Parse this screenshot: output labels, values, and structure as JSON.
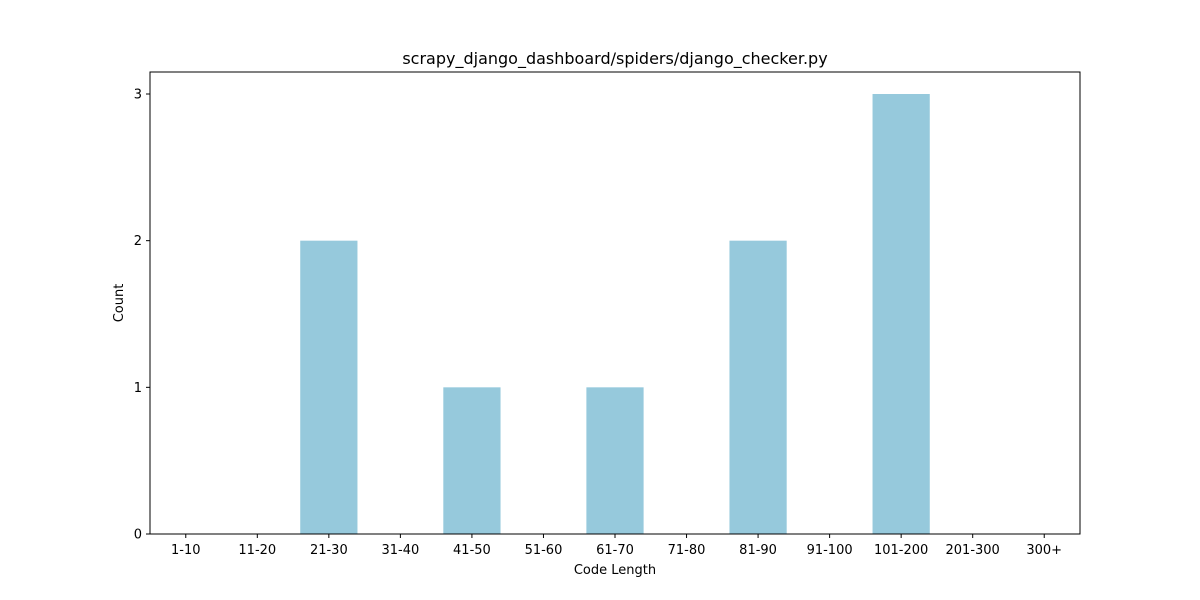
{
  "chart_data": {
    "type": "bar",
    "title": "scrapy_django_dashboard/spiders/django_checker.py",
    "xlabel": "Code Length",
    "ylabel": "Count",
    "categories": [
      "1-10",
      "11-20",
      "21-30",
      "31-40",
      "41-50",
      "51-60",
      "61-70",
      "71-80",
      "81-90",
      "91-100",
      "101-200",
      "201-300",
      "300+"
    ],
    "values": [
      0,
      0,
      2,
      0,
      1,
      0,
      1,
      0,
      2,
      0,
      3,
      0,
      0
    ],
    "ylim": [
      0,
      3.15
    ],
    "yticks": [
      0,
      1,
      2,
      3
    ],
    "bar_color": "#96c9dc",
    "grid": false,
    "legend": "none"
  }
}
